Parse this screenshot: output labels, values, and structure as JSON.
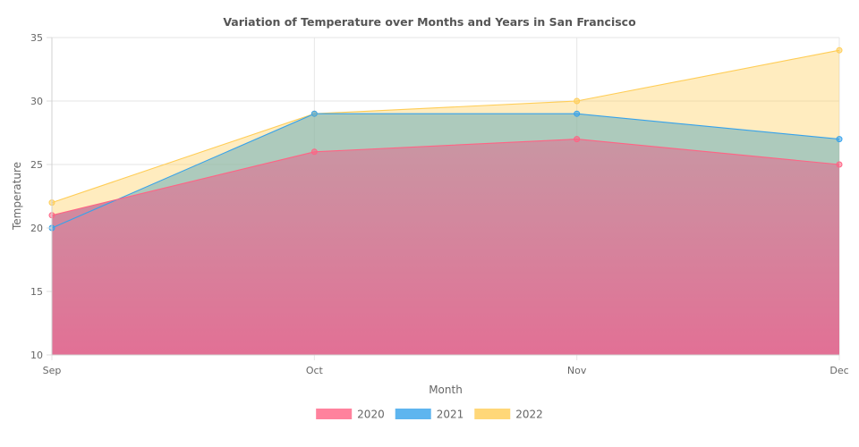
{
  "chart_data": {
    "type": "area",
    "title": "Variation of Temperature over Months and Years in San Francisco",
    "xlabel": "Month",
    "ylabel": "Temperature",
    "categories": [
      "Sep",
      "Oct",
      "Nov",
      "Dec"
    ],
    "ylim": [
      10,
      35
    ],
    "yticks": [
      10,
      15,
      20,
      25,
      30,
      35
    ],
    "grid": true,
    "legend_position": "bottom",
    "series": [
      {
        "name": "2020",
        "values": [
          21,
          26,
          27,
          25
        ],
        "color": "#ff6384"
      },
      {
        "name": "2021",
        "values": [
          20,
          29,
          29,
          27
        ],
        "color": "#36a2eb"
      },
      {
        "name": "2022",
        "values": [
          22,
          29,
          30,
          34
        ],
        "color": "#ffcd56"
      }
    ]
  }
}
